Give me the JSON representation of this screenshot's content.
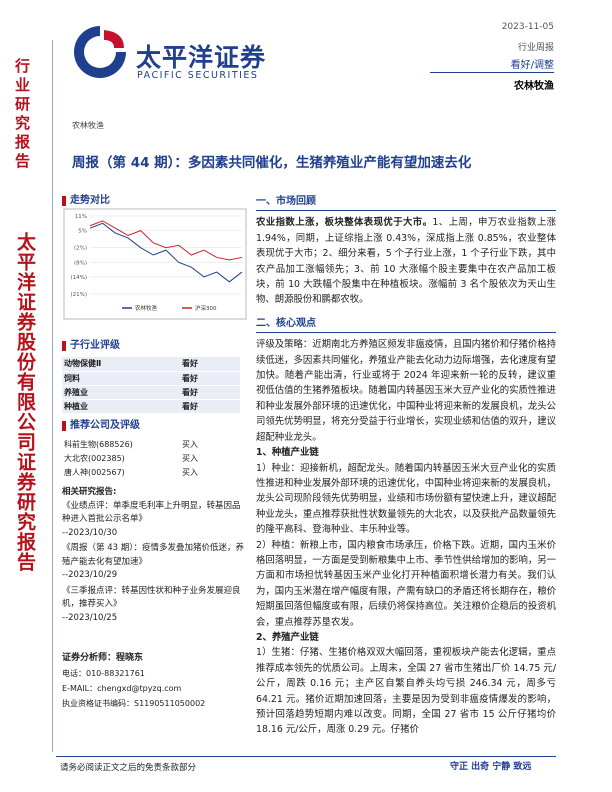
{
  "header": {
    "logo_cn": "太平洋证券",
    "logo_en": "PACIFIC SECURITIES",
    "date": "2023-11-05",
    "report_type": "行业周报",
    "rating": "看好/调整",
    "industry": "农林牧渔"
  },
  "sidebar": {
    "top": "行业研究报告",
    "bottom": "太平洋证券股份有限公司证券研究报告"
  },
  "breadcrumb": "农林牧渔",
  "title": "周报（第 44 期）：多因素共同催化，生猪养殖业产能有望加速去化",
  "trend_chart": {
    "type": "line",
    "heading": "走势对比",
    "ylim": [
      -21,
      11
    ],
    "yticks": [
      {
        "value": 11,
        "label": "11%"
      },
      {
        "value": 5,
        "label": "5%"
      },
      {
        "value": -2,
        "label": "(2%)"
      },
      {
        "value": -8,
        "label": "(8%)"
      },
      {
        "value": -14,
        "label": "(14%)"
      },
      {
        "value": -21,
        "label": "(21%)"
      }
    ],
    "series": [
      {
        "name": "农林牧渔",
        "color": "#1f3f8f",
        "values": [
          6,
          8,
          4,
          2,
          -2,
          -5,
          -3,
          -8,
          -10,
          -14,
          -12,
          -16,
          -12
        ]
      },
      {
        "name": "沪深300",
        "color": "#d0202a",
        "values": [
          7,
          9,
          6,
          3,
          5,
          0,
          -2,
          -1,
          -5,
          -3,
          -6,
          -7,
          -6
        ]
      }
    ]
  },
  "sub_industry": {
    "heading": "子行业评级",
    "rows": [
      [
        "动物保健Ⅱ",
        "看好"
      ],
      [
        "饲料",
        "看好"
      ],
      [
        "养殖业",
        "看好"
      ],
      [
        "种植业",
        "看好"
      ]
    ]
  },
  "companies": {
    "heading": "推荐公司及评级",
    "rows": [
      [
        "科前生物(688526)",
        "买入"
      ],
      [
        "大北农(002385)",
        "买入"
      ],
      [
        "唐人神(002567)",
        "买入"
      ]
    ]
  },
  "related": {
    "heading": "相关研究报告:",
    "items": [
      {
        "text": "《业绩点评：单季度毛利率上升明显，转基因品种进入首批公示名单》",
        "date": "--2023/10/30"
      },
      {
        "text": "《周报（第 43 期）：疫情多发叠加猪价低迷，养殖产能去化有望加速》",
        "date": "--2023/10/29"
      },
      {
        "text": "《三季报点评：转基因性状和种子业务发展迎良机，推荐买入》",
        "date": "--2023/10/25"
      }
    ]
  },
  "analyst": {
    "name": "证券分析师：程晓东",
    "phone": "电话：010-88321761",
    "email": "E-MAIL：chengxd@tpyzq.com",
    "cert": "执业资格证书编码：S1190511050002"
  },
  "body": {
    "section1": {
      "heading": "一、市场回顾",
      "lead": "农业指数上涨，板块整体表现优于大市。",
      "text": "1、上周，申万农业指数上涨 1.94%，同期，上证综指上涨 0.43%，深成指上涨 0.85%，农业整体表现优于大市；2、细分来看，5 个子行业上涨，1 个子行业下跌，其中农产品加工涨幅领先；3、前 10 大涨幅个股主要集中在农产品加工板块，前 10 大跌幅个股集中在种植板块。涨幅前 3 名个股依次为天山生物、朗源股份和鹏都农牧。"
    },
    "section2": {
      "heading": "二、核心观点",
      "paragraphs": [
        "评级及策略：近期南北方养殖区频发非瘟疫情，且国内猪价和仔猪价格持续低迷，多因素共同催化，养殖业产能去化动力边际增强，去化速度有望加快。随着产能出清，行业或将于 2024 年迎来新一轮的反转，建议重视低估值的生猪养殖板块。随着国内转基因玉米大豆产业化的实质性推进和种业发展外部环境的迅速优化，中国种业将迎来新的发展良机，龙头公司领先优势明显，将充分受益于行业增长，实现业绩和估值的双升，建议超配种业龙头。",
        "1、种植产业链",
        "1）种业：迎接新机，超配龙头。随着国内转基因玉米大豆产业化的实质性推进和种业发展外部环境的迅速优化，中国种业将迎来新的发展良机，龙头公司现阶段领先优势明显，业绩和市场份额有望快速上升，建议超配种业龙头，重点推荐获批性状数量领先的大北农，以及获批产品数量领先的隆平高科、登海种业、丰乐种业等。",
        "2）种植：新粮上市，国内粮食市场承压，价格下跌。近期，国内玉米价格回落明显，一方面是受到新粮集中上市、季节性供给增加的影响，另一方面和市场担忧转基因玉米产业化打开种植面积增长潜力有关。我们认为，国内玉米潜在增产幅度有限，产需有缺口的矛盾还将长期存在，粮价短期虽回落但幅度或有限，后续仍将保持高位。关注粮价企稳后的投资机会，重点推荐苏垦农发。",
        "2、养殖产业链",
        "1）生猪：仔猪、生猪价格双双大幅回落，重视板块产能去化逻辑，重点推荐成本领先的优质公司。上周末，全国 27 省市生猪出厂价 14.75 元/公斤，周跌 0.16 元；主产区自繁自养头均亏损 246.34 元，周多亏 64.21 元。猪价近期加速回落，主要是因为受到非瘟疫情爆发的影响，预计回落趋势短期内难以改变。同期，全国 27 省市 15 公斤仔猪均价 18.16 元/公斤，周涨 0.29 元。仔猪价"
      ]
    }
  },
  "footer": {
    "left": "请务必阅读正文之后的免责条款部分",
    "right": "守正 出奇 宁静 致远"
  }
}
